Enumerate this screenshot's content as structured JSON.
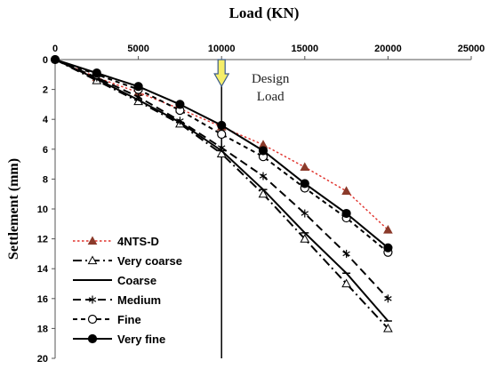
{
  "chart_data": {
    "type": "line",
    "xlabel": "Load (KN)",
    "ylabel": "Settlement (mm)",
    "xlim": [
      0,
      25000
    ],
    "ylim": [
      0,
      20
    ],
    "y_inverted": true,
    "x_axis_position": "top",
    "x_ticks": [
      0,
      5000,
      10000,
      15000,
      20000,
      25000
    ],
    "y_ticks": [
      0,
      2,
      4,
      6,
      8,
      10,
      12,
      14,
      16,
      18,
      20
    ],
    "grid": false,
    "legend_position": "bottom-left",
    "reference_line": {
      "x": 10000,
      "label_lines": [
        "Design",
        "Load"
      ]
    },
    "series": [
      {
        "name": "4NTS-D",
        "color": "#e0302a",
        "line_style": "dotted",
        "marker": "filled-triangle",
        "x": [
          0,
          2500,
          5000,
          7500,
          10000,
          12500,
          15000,
          17500,
          20000
        ],
        "y": [
          0,
          1.2,
          2.2,
          3.3,
          4.5,
          5.7,
          7.2,
          8.8,
          11.4
        ]
      },
      {
        "name": "Very coarse",
        "color": "#000000",
        "line_style": "dash-dot",
        "marker": "open-triangle",
        "x": [
          0,
          2500,
          5000,
          7500,
          10000,
          12500,
          15000,
          17500,
          20000
        ],
        "y": [
          0,
          1.4,
          2.8,
          4.3,
          6.3,
          9.0,
          12.0,
          15.0,
          18.0
        ]
      },
      {
        "name": "Coarse",
        "color": "#000000",
        "line_style": "solid",
        "marker": "dash",
        "x": [
          0,
          2500,
          5000,
          7500,
          10000,
          12500,
          15000,
          17500,
          20000
        ],
        "y": [
          0,
          1.3,
          2.7,
          4.2,
          6.1,
          8.7,
          11.6,
          14.3,
          17.5
        ]
      },
      {
        "name": "Medium",
        "color": "#000000",
        "line_style": "dashed",
        "marker": "asterisk",
        "x": [
          0,
          2500,
          5000,
          7500,
          10000,
          12500,
          15000,
          17500,
          20000
        ],
        "y": [
          0,
          1.2,
          2.5,
          4.1,
          5.9,
          7.8,
          10.3,
          13.0,
          16.0
        ]
      },
      {
        "name": "Fine",
        "color": "#000000",
        "line_style": "short-dashed",
        "marker": "open-circle",
        "x": [
          0,
          2500,
          5000,
          7500,
          10000,
          12500,
          15000,
          17500,
          20000
        ],
        "y": [
          0,
          1.0,
          2.0,
          3.4,
          5.0,
          6.5,
          8.6,
          10.6,
          12.9
        ]
      },
      {
        "name": "Very fine",
        "color": "#000000",
        "line_style": "solid",
        "marker": "filled-circle",
        "x": [
          0,
          2500,
          5000,
          7500,
          10000,
          12500,
          15000,
          17500,
          20000
        ],
        "y": [
          0,
          0.9,
          1.8,
          3.0,
          4.4,
          6.1,
          8.3,
          10.3,
          12.6
        ]
      }
    ]
  }
}
